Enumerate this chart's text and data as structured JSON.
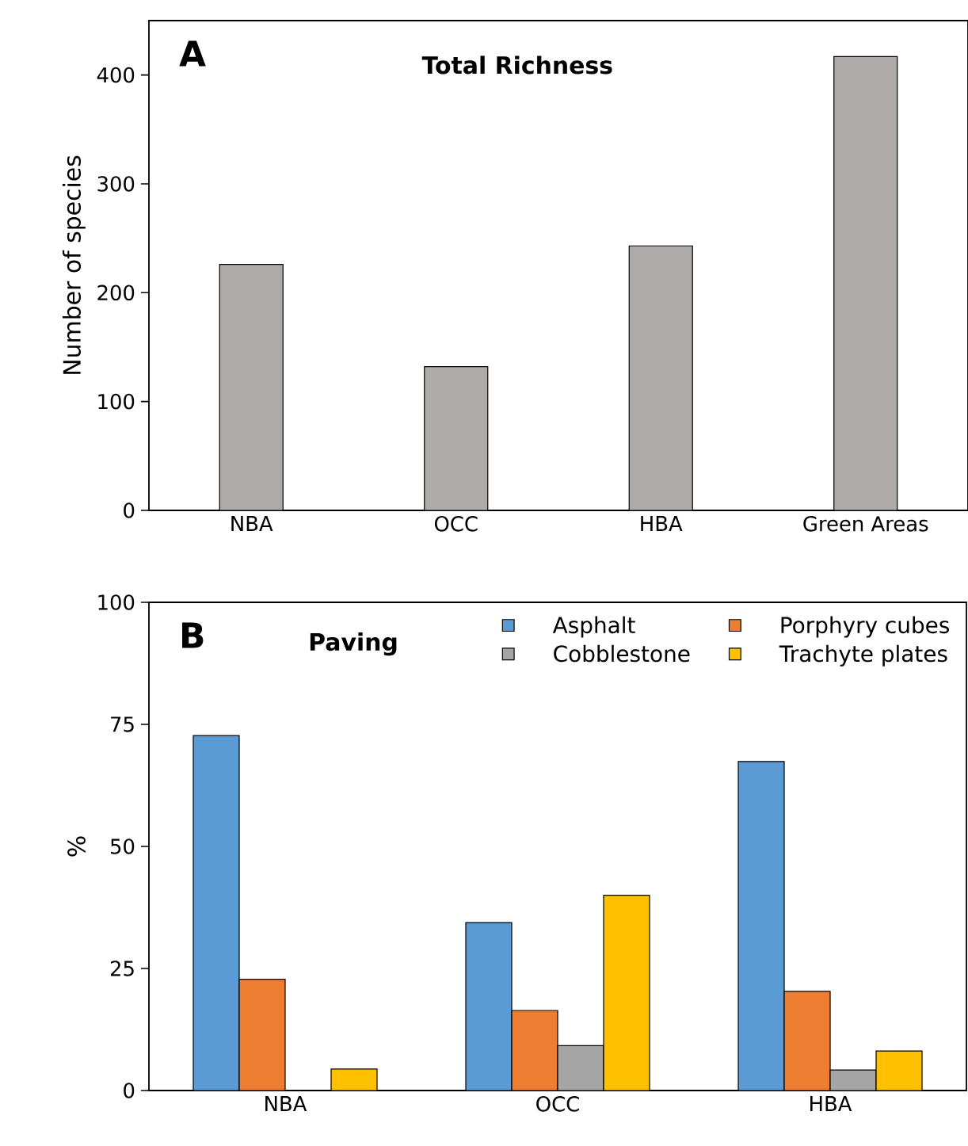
{
  "chart_data": [
    {
      "type": "bar",
      "title": "Total Richness",
      "ylabel": "Number of species",
      "annotations": [
        "A"
      ],
      "categories": [
        "NBA",
        "OCC",
        "HBA",
        "Green Areas"
      ],
      "series": [
        {
          "color": "#aeaaaa",
          "values": [
            226,
            132,
            243,
            417
          ]
        }
      ],
      "ylim": [
        0,
        450
      ],
      "yticks": [
        0,
        100,
        200,
        300,
        400
      ]
    },
    {
      "type": "bar",
      "title": "Paving",
      "ylabel": "%",
      "annotations": [
        "B"
      ],
      "categories": [
        "NBA",
        "OCC",
        "HBA"
      ],
      "series": [
        {
          "name": "Asphalt",
          "color": "#5b9bd5",
          "values": [
            72.7,
            34.4,
            67.4
          ]
        },
        {
          "name": "Porphyry cubes",
          "color": "#ed7d31",
          "values": [
            22.8,
            16.4,
            20.3
          ]
        },
        {
          "name": "Cobblestone",
          "color": "#a5a5a5",
          "values": [
            null,
            9.2,
            4.2
          ]
        },
        {
          "name": "Trachyte plates",
          "color": "#ffc000",
          "values": [
            4.4,
            40.0,
            8.1
          ]
        }
      ],
      "ylim": [
        0,
        100
      ],
      "yticks": [
        0,
        25,
        50,
        75,
        100
      ],
      "legend": "top right"
    }
  ]
}
